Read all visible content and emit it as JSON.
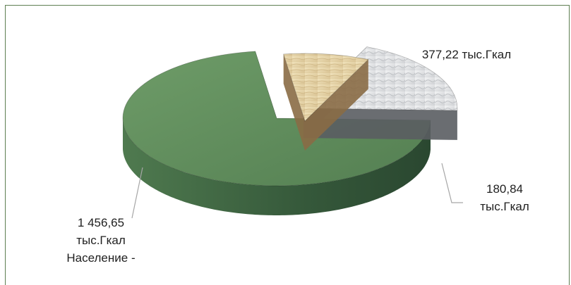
{
  "colors": {
    "border": "#5f7f52",
    "slice_green_top": "#5e8c5a",
    "slice_green_side": "#3e6440",
    "slice_beige_top": "#e6d4a8",
    "slice_beige_side": "#8a6c45",
    "slice_white_top": "#e3e4e6",
    "slice_white_side": "#5a5d62",
    "leader": "#a6a6a6"
  },
  "chart_data": {
    "type": "pie",
    "style": "3d-exploded",
    "slices": [
      {
        "value": 1456.65,
        "label_lines": [
          "1 456,65",
          "тыс.Гкал",
          "Население -"
        ],
        "color": "#5e8c5a"
      },
      {
        "value": 180.84,
        "label_lines": [
          "180,84",
          "тыс.Гкал"
        ],
        "color": "#e6d4a8"
      },
      {
        "value": 377.22,
        "label_lines": [
          "377,22 тыс.Гкал"
        ],
        "color": "#e3e4e6"
      }
    ]
  }
}
